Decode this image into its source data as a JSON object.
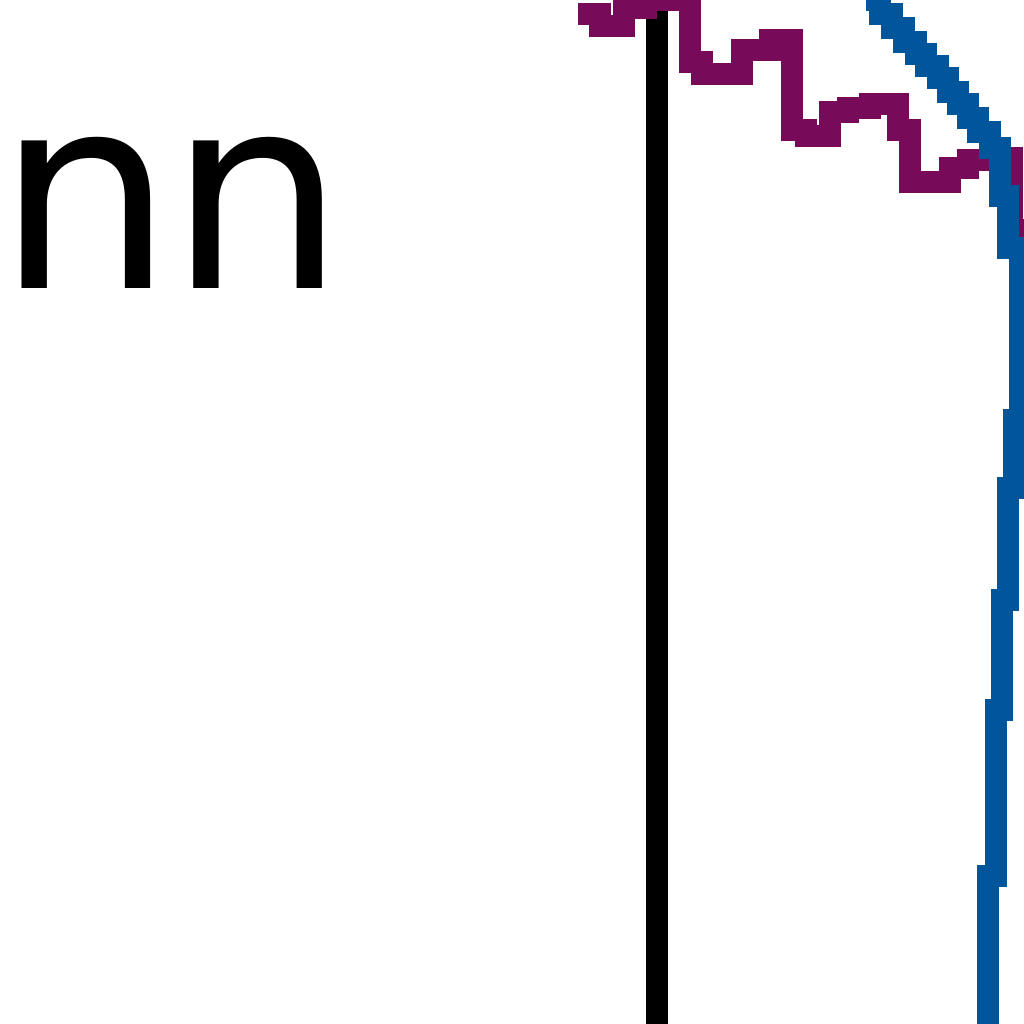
{
  "label": {
    "text": "nn"
  },
  "colors": {
    "axis": "#000000",
    "wavy_line": "#780a5a",
    "curve": "#00559b",
    "text": "#000000"
  }
}
